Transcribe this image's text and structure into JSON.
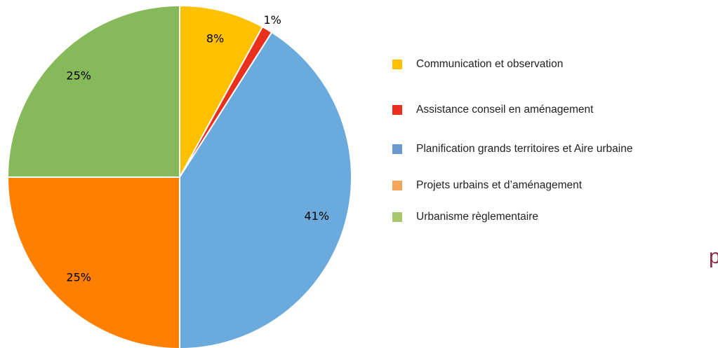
{
  "chart_data": {
    "type": "pie",
    "categories": [
      "Communication et observation",
      "Assistance conseil en aménagement",
      "Planification grands territoires et Aire urbaine",
      "Projets urbains et d’aménagement",
      "Urbanisme règlementaire"
    ],
    "values": [
      8,
      1,
      41,
      25,
      25
    ],
    "value_labels": [
      "8%",
      "1%",
      "41%",
      "25%",
      "25%"
    ],
    "colors": [
      "#FFC000",
      "#E8301C",
      "#6AAADC",
      "#FF7F00",
      "#86B95A"
    ],
    "legend_colors": [
      "#FFC000",
      "#E8301C",
      "#6A9AD0",
      "#F5A55A",
      "#A9C86E"
    ],
    "fragment_text": "p"
  }
}
